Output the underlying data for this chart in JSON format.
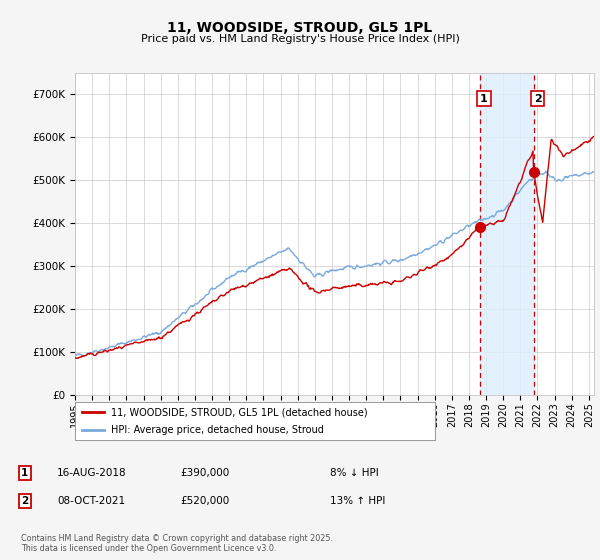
{
  "title": "11, WOODSIDE, STROUD, GL5 1PL",
  "subtitle": "Price paid vs. HM Land Registry's House Price Index (HPI)",
  "ylim": [
    0,
    750000
  ],
  "yticks": [
    0,
    100000,
    200000,
    300000,
    400000,
    500000,
    600000,
    700000
  ],
  "ytick_labels": [
    "£0",
    "£100K",
    "£200K",
    "£300K",
    "£400K",
    "£500K",
    "£600K",
    "£700K"
  ],
  "xlim_start": 1995.0,
  "xlim_end": 2025.3,
  "marker1_x": 2018.62,
  "marker1_y": 390000,
  "marker2_x": 2021.77,
  "marker2_y": 520000,
  "legend_entry1": "11, WOODSIDE, STROUD, GL5 1PL (detached house)",
  "legend_entry2": "HPI: Average price, detached house, Stroud",
  "footer": "Contains HM Land Registry data © Crown copyright and database right 2025.\nThis data is licensed under the Open Government Licence v3.0.",
  "line_color_red": "#cc0000",
  "line_color_blue": "#7aaadd",
  "shaded_region_color": "#ddeeff",
  "dashed_line_color": "#cc0000",
  "background_color": "#f5f5f5",
  "plot_bg_color": "#ffffff",
  "marker1_date": "16-AUG-2018",
  "marker1_price": "£390,000",
  "marker1_hpi": "8% ↓ HPI",
  "marker2_date": "08-OCT-2021",
  "marker2_price": "£520,000",
  "marker2_hpi": "13% ↑ HPI",
  "xtick_years": [
    1995,
    1996,
    1997,
    1998,
    1999,
    2000,
    2001,
    2002,
    2003,
    2004,
    2005,
    2006,
    2007,
    2008,
    2009,
    2010,
    2011,
    2012,
    2013,
    2014,
    2015,
    2016,
    2017,
    2018,
    2019,
    2020,
    2021,
    2022,
    2023,
    2024,
    2025
  ]
}
